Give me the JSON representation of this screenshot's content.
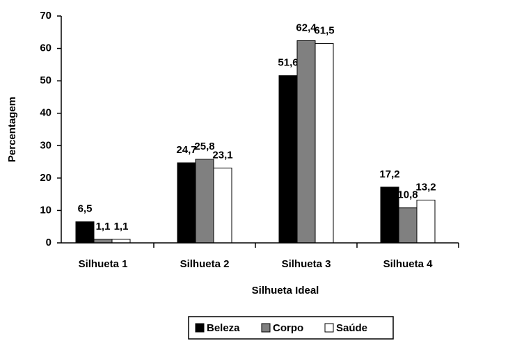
{
  "chart_data": {
    "type": "bar",
    "xlabel": "Silhueta Ideal",
    "ylabel": "Percentagem",
    "categories": [
      "Silhueta 1",
      "Silhueta 2",
      "Silhueta 3",
      "Silhueta 4"
    ],
    "series": [
      {
        "name": "Beleza",
        "color": "#000000",
        "values": [
          6.5,
          24.7,
          51.6,
          17.2
        ],
        "value_labels": [
          "6,5",
          "24,7",
          "51,6",
          "17,2"
        ]
      },
      {
        "name": "Corpo",
        "color": "#808080",
        "values": [
          1.1,
          25.8,
          62.4,
          10.8
        ],
        "value_labels": [
          "1,1",
          "25,8",
          "62,4",
          "10,8"
        ]
      },
      {
        "name": "Saúde",
        "color": "#ffffff",
        "values": [
          1.1,
          23.1,
          61.5,
          13.2
        ],
        "value_labels": [
          "1,1",
          "23,1",
          "61,5",
          "13,2"
        ]
      }
    ],
    "ylim": [
      0,
      70
    ],
    "yticks": [
      0,
      10,
      20,
      30,
      40,
      50,
      60,
      70
    ],
    "legend": "bottom"
  }
}
